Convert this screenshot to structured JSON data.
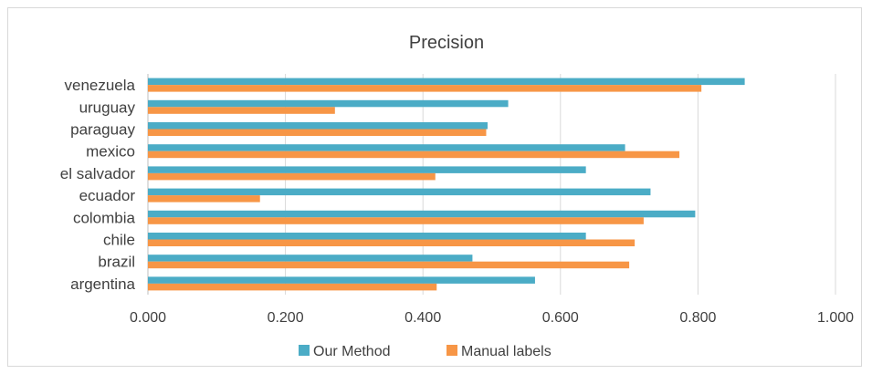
{
  "chart_data": {
    "type": "bar",
    "orientation": "horizontal",
    "title": "Precision",
    "categories": [
      "argentina",
      "brazil",
      "chile",
      "colombia",
      "ecuador",
      "el salvador",
      "mexico",
      "paraguay",
      "uruguay",
      "venezuela"
    ],
    "series": [
      {
        "name": "Our Method",
        "color": "#4bacc6",
        "values": [
          0.563,
          0.472,
          0.637,
          0.796,
          0.731,
          0.637,
          0.694,
          0.494,
          0.524,
          0.868
        ]
      },
      {
        "name": "Manual labels",
        "color": "#f79646",
        "values": [
          0.42,
          0.7,
          0.708,
          0.721,
          0.163,
          0.418,
          0.773,
          0.492,
          0.272,
          0.805
        ]
      }
    ],
    "xlim": [
      0,
      1
    ],
    "x_ticks": [
      "0.000",
      "0.200",
      "0.400",
      "0.600",
      "0.800",
      "1.000"
    ],
    "grid": true,
    "legend_position": "bottom"
  }
}
